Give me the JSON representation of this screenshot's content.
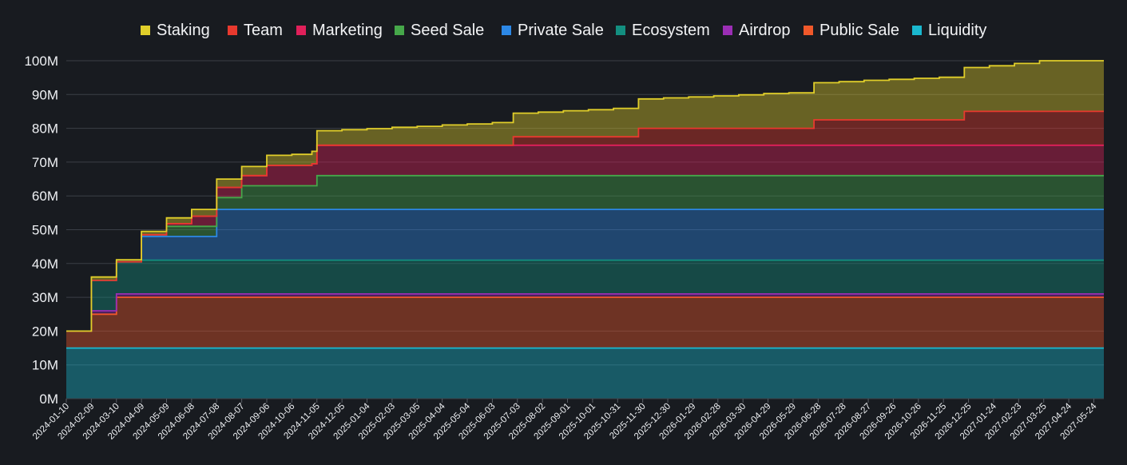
{
  "chart_data": {
    "type": "area",
    "stacked": true,
    "step": true,
    "legend_position": "top",
    "grid": true,
    "ylim": [
      0,
      100000000
    ],
    "y_ticks": [
      "0M",
      "10M",
      "20M",
      "30M",
      "40M",
      "50M",
      "60M",
      "70M",
      "80M",
      "90M",
      "100M"
    ],
    "x_ticks": [
      "2024-01-10",
      "2024-02-09",
      "2024-03-10",
      "2024-04-09",
      "2024-05-09",
      "2024-06-08",
      "2024-07-08",
      "2024-08-07",
      "2024-09-06",
      "2024-10-06",
      "2024-11-05",
      "2024-12-05",
      "2025-01-04",
      "2025-02-03",
      "2025-03-05",
      "2025-04-04",
      "2025-05-04",
      "2025-06-03",
      "2025-07-03",
      "2025-08-02",
      "2025-09-01",
      "2025-10-01",
      "2025-10-31",
      "2025-11-30",
      "2025-12-30",
      "2026-01-29",
      "2026-02-28",
      "2026-03-30",
      "2026-04-29",
      "2026-05-29",
      "2026-06-28",
      "2026-07-28",
      "2026-08-27",
      "2026-09-26",
      "2026-10-26",
      "2026-11-25",
      "2026-12-25",
      "2027-01-24",
      "2027-02-23",
      "2027-03-25",
      "2027-04-24",
      "2027-05-24"
    ],
    "series": [
      {
        "name": "Liquidity",
        "color": "#1ab8cf",
        "start": "2024-01-10",
        "changes": [
          [
            "2024-01-10",
            15
          ]
        ]
      },
      {
        "name": "Public Sale",
        "color": "#f0582a",
        "start": "2024-01-10",
        "changes": [
          [
            "2024-01-10",
            5
          ],
          [
            "2024-02-09",
            10
          ],
          [
            "2024-03-10",
            15
          ]
        ]
      },
      {
        "name": "Airdrop",
        "color": "#9b2eb5",
        "start": "2024-02-09",
        "changes": [
          [
            "2024-02-09",
            1
          ],
          [
            "2024-03-10",
            1
          ]
        ]
      },
      {
        "name": "Ecosystem",
        "color": "#138f80",
        "start": "2024-01-10",
        "changes": [
          [
            "2024-02-09",
            9
          ],
          [
            "2024-03-10",
            9.5
          ],
          [
            "2024-04-09",
            10
          ]
        ]
      },
      {
        "name": "Private Sale",
        "color": "#2c88e6",
        "start": "2024-04-09",
        "changes": [
          [
            "2024-04-09",
            7
          ],
          [
            "2024-07-08",
            15
          ]
        ]
      },
      {
        "name": "Seed Sale",
        "color": "#46a84a",
        "start": "2024-04-09",
        "changes": [
          [
            "2024-04-09",
            0.5
          ],
          [
            "2024-05-09",
            3
          ],
          [
            "2024-07-08",
            3.5
          ],
          [
            "2024-08-07",
            7
          ],
          [
            "2024-11-05",
            10
          ]
        ]
      },
      {
        "name": "Marketing",
        "color": "#e0205a",
        "start": "2024-04-09",
        "changes": [
          [
            "2024-05-09",
            0.8
          ],
          [
            "2024-06-08",
            3
          ],
          [
            "2024-07-08",
            3
          ],
          [
            "2024-08-07",
            3
          ],
          [
            "2024-09-06",
            6
          ],
          [
            "2024-10-30",
            6.5
          ],
          [
            "2024-11-05",
            9
          ]
        ]
      },
      {
        "name": "Team",
        "color": "#e8392e",
        "start": "2024-01-10",
        "changes": [
          [
            "2025-06-28",
            2.5
          ],
          [
            "2025-11-25",
            5
          ],
          [
            "2026-06-23",
            7.5
          ],
          [
            "2026-12-20",
            10
          ]
        ]
      },
      {
        "name": "Staking",
        "color": "#e0ce2a",
        "start": "2024-01-10",
        "changes": [
          [
            "2024-02-09",
            1
          ],
          [
            "2024-03-10",
            0.6
          ],
          [
            "2024-04-09",
            1
          ],
          [
            "2024-05-09",
            1.7
          ],
          [
            "2024-06-08",
            2
          ],
          [
            "2024-07-08",
            2.5
          ],
          [
            "2024-08-07",
            2.7
          ],
          [
            "2024-09-06",
            3
          ],
          [
            "2024-10-06",
            3.3
          ],
          [
            "2024-10-30",
            3.7
          ],
          [
            "2024-11-05",
            4.3
          ],
          [
            "2024-12-05",
            4.6
          ],
          [
            "2025-01-04",
            4.9
          ],
          [
            "2025-02-03",
            5.3
          ],
          [
            "2025-03-05",
            5.6
          ],
          [
            "2025-04-04",
            6
          ],
          [
            "2025-05-04",
            6.3
          ],
          [
            "2025-06-03",
            6.7
          ],
          [
            "2025-06-28",
            7
          ],
          [
            "2025-07-28",
            7.3
          ],
          [
            "2025-08-27",
            7.7
          ],
          [
            "2025-09-26",
            8
          ],
          [
            "2025-10-26",
            8.4
          ],
          [
            "2025-11-25",
            8.7
          ],
          [
            "2025-12-25",
            9
          ],
          [
            "2026-01-24",
            9.3
          ],
          [
            "2026-02-23",
            9.6
          ],
          [
            "2026-03-25",
            9.9
          ],
          [
            "2026-04-24",
            10.3
          ],
          [
            "2026-05-24",
            10.5
          ],
          [
            "2026-06-23",
            11
          ],
          [
            "2026-07-23",
            11.3
          ],
          [
            "2026-08-22",
            11.7
          ],
          [
            "2026-09-21",
            12
          ],
          [
            "2026-10-21",
            12.3
          ],
          [
            "2026-11-20",
            12.6
          ],
          [
            "2026-12-20",
            13
          ],
          [
            "2027-01-19",
            13.5
          ],
          [
            "2027-02-18",
            14.2
          ],
          [
            "2027-03-20",
            15
          ]
        ]
      }
    ]
  },
  "legend": [
    {
      "label": "Staking",
      "color": "#e0ce2a"
    },
    {
      "label": "Team",
      "color": "#e8392e"
    },
    {
      "label": "Marketing",
      "color": "#e0205a"
    },
    {
      "label": "Seed Sale",
      "color": "#46a84a"
    },
    {
      "label": "Private Sale",
      "color": "#2c88e6"
    },
    {
      "label": "Ecosystem",
      "color": "#138f80"
    },
    {
      "label": "Airdrop",
      "color": "#9b2eb5"
    },
    {
      "label": "Public Sale",
      "color": "#f0582a"
    },
    {
      "label": "Liquidity",
      "color": "#1ab8cf"
    }
  ]
}
